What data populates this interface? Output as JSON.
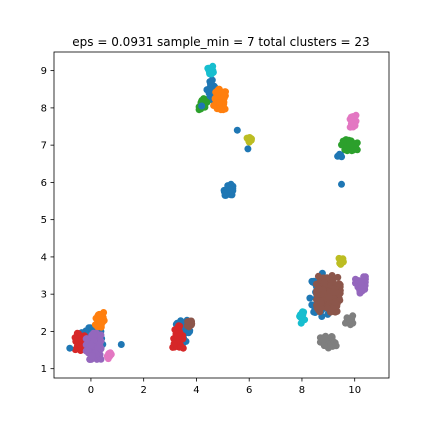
{
  "chart_data": {
    "type": "scatter",
    "title": "eps = 0.0931 sample_min = 7 total clusters = 23",
    "xlabel": "",
    "ylabel": "",
    "xlim": [
      -1.4,
      11.3
    ],
    "ylim": [
      0.75,
      9.5
    ],
    "xticks": [
      0,
      2,
      4,
      6,
      8,
      10
    ],
    "yticks": [
      1,
      2,
      3,
      4,
      5,
      6,
      7,
      8,
      9
    ],
    "grid": false,
    "legend": "none",
    "clusters": [
      {
        "color": "#1f77b4",
        "center": [
          0.05,
          1.75
        ],
        "spread": [
          0.4,
          0.35
        ],
        "count": 90
      },
      {
        "color": "#d62728",
        "center": [
          -0.4,
          1.7
        ],
        "spread": [
          0.2,
          0.25
        ],
        "count": 45
      },
      {
        "color": "#ff7f0e",
        "center": [
          0.35,
          2.3
        ],
        "spread": [
          0.18,
          0.28
        ],
        "count": 40
      },
      {
        "color": "#9467bd",
        "center": [
          0.1,
          1.6
        ],
        "spread": [
          0.28,
          0.35
        ],
        "count": 80
      },
      {
        "color": "#e377c2",
        "center": [
          0.7,
          1.35
        ],
        "spread": [
          0.08,
          0.08
        ],
        "count": 8
      },
      {
        "color": "#1f77b4",
        "center": [
          3.5,
          2.0
        ],
        "spread": [
          0.3,
          0.3
        ],
        "count": 35
      },
      {
        "color": "#d62728",
        "center": [
          3.3,
          1.85
        ],
        "spread": [
          0.2,
          0.3
        ],
        "count": 35
      },
      {
        "color": "#8c564b",
        "center": [
          3.75,
          2.2
        ],
        "spread": [
          0.12,
          0.15
        ],
        "count": 15
      },
      {
        "color": "#1f77b4",
        "center": [
          4.6,
          8.5
        ],
        "spread": [
          0.2,
          0.4
        ],
        "count": 30
      },
      {
        "color": "#ff7f0e",
        "center": [
          4.9,
          8.2
        ],
        "spread": [
          0.25,
          0.3
        ],
        "count": 55
      },
      {
        "color": "#2ca02c",
        "center": [
          4.25,
          8.1
        ],
        "spread": [
          0.15,
          0.15
        ],
        "count": 30
      },
      {
        "color": "#17becf",
        "center": [
          4.55,
          9.0
        ],
        "spread": [
          0.12,
          0.12
        ],
        "count": 15
      },
      {
        "color": "#1f77b4",
        "center": [
          5.25,
          5.8
        ],
        "spread": [
          0.2,
          0.15
        ],
        "count": 30
      },
      {
        "color": "#bcbd22",
        "center": [
          6.0,
          7.15
        ],
        "spread": [
          0.12,
          0.07
        ],
        "count": 12
      },
      {
        "color": "#2ca02c",
        "center": [
          9.8,
          7.0
        ],
        "spread": [
          0.3,
          0.15
        ],
        "count": 45
      },
      {
        "color": "#e377c2",
        "center": [
          9.9,
          7.6
        ],
        "spread": [
          0.15,
          0.2
        ],
        "count": 25
      },
      {
        "color": "#1f77b4",
        "center": [
          9.45,
          6.7
        ],
        "spread": [
          0.1,
          0.08
        ],
        "count": 6
      },
      {
        "color": "#1f77b4",
        "center": [
          8.8,
          3.0
        ],
        "spread": [
          0.5,
          0.6
        ],
        "count": 80
      },
      {
        "color": "#8c564b",
        "center": [
          9.0,
          3.0
        ],
        "spread": [
          0.45,
          0.5
        ],
        "count": 150
      },
      {
        "color": "#9467bd",
        "center": [
          10.25,
          3.25
        ],
        "spread": [
          0.22,
          0.22
        ],
        "count": 40
      },
      {
        "color": "#7f7f7f",
        "center": [
          9.0,
          1.7
        ],
        "spread": [
          0.3,
          0.18
        ],
        "count": 45
      },
      {
        "color": "#7f7f7f",
        "center": [
          9.8,
          2.3
        ],
        "spread": [
          0.15,
          0.12
        ],
        "count": 15
      },
      {
        "color": "#17becf",
        "center": [
          8.0,
          2.4
        ],
        "spread": [
          0.1,
          0.18
        ],
        "count": 15
      },
      {
        "color": "#bcbd22",
        "center": [
          9.5,
          3.9
        ],
        "spread": [
          0.1,
          0.1
        ],
        "count": 10
      }
    ],
    "outliers": [
      {
        "color": "#1f77b4",
        "x": 9.5,
        "y": 5.95
      },
      {
        "color": "#1f77b4",
        "x": 5.55,
        "y": 7.4
      },
      {
        "color": "#1f77b4",
        "x": 5.95,
        "y": 6.9
      },
      {
        "color": "#1f77b4",
        "x": 1.15,
        "y": 1.65
      },
      {
        "color": "#1f77b4",
        "x": -0.8,
        "y": 1.55
      },
      {
        "color": "#1f77b4",
        "x": 4.2,
        "y": 8.05
      }
    ]
  }
}
